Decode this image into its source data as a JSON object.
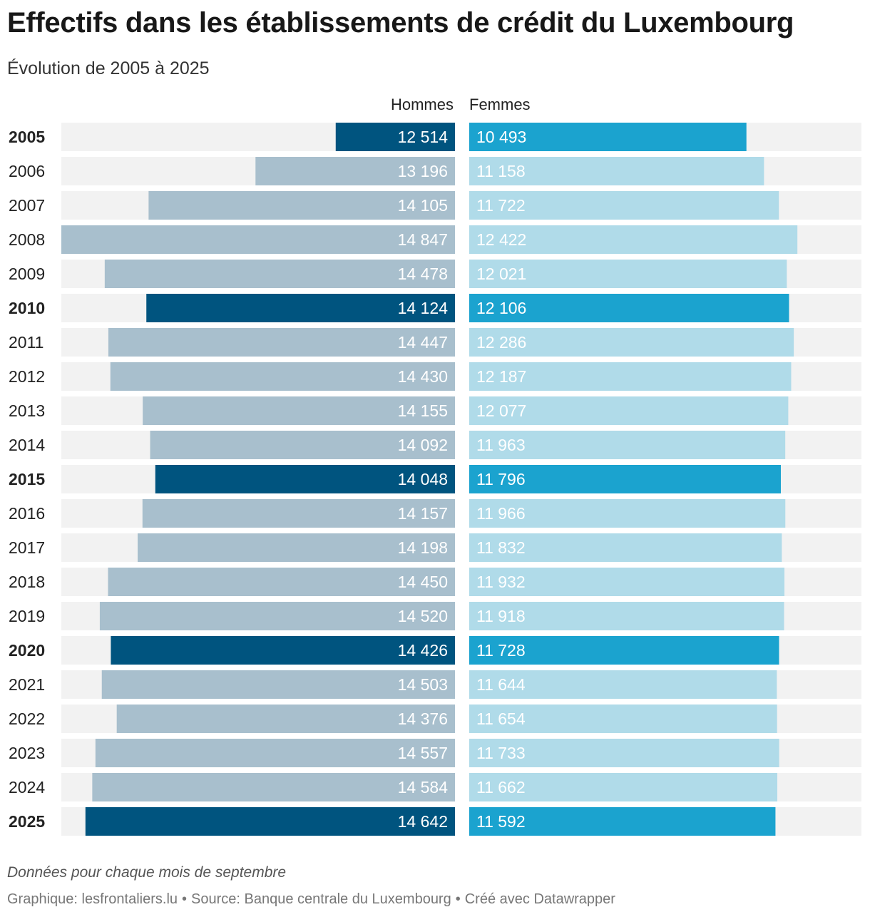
{
  "title": "Effectifs dans les établissements de crédit du Luxembourg",
  "subtitle": "Évolution de 2005 à 2025",
  "colors": {
    "men_highlight": "#00547f",
    "men": "#a8bfcd",
    "women_highlight": "#1ba3cf",
    "women": "#b0dbe9",
    "track": "#f2f2f2",
    "label_dark": "#ffffff",
    "label_light": "#ffffff"
  },
  "chart_data": {
    "type": "bar",
    "orientation": "horizontal-butterfly",
    "categories": [
      "2005",
      "2006",
      "2007",
      "2008",
      "2009",
      "2010",
      "2011",
      "2012",
      "2013",
      "2014",
      "2015",
      "2016",
      "2017",
      "2018",
      "2019",
      "2020",
      "2021",
      "2022",
      "2023",
      "2024",
      "2025"
    ],
    "highlighted": [
      "2005",
      "2010",
      "2015",
      "2020",
      "2025"
    ],
    "series": [
      {
        "name": "Hommes",
        "values": [
          12514,
          13196,
          14105,
          14847,
          14478,
          14124,
          14447,
          14430,
          14155,
          14092,
          14048,
          14157,
          14198,
          14450,
          14520,
          14426,
          14503,
          14376,
          14557,
          14584,
          14642
        ],
        "labels": [
          "12 514",
          "13 196",
          "14 105",
          "14 847",
          "14 478",
          "14 124",
          "14 447",
          "14 430",
          "14 155",
          "14 092",
          "14 048",
          "14 157",
          "14 198",
          "14 450",
          "14 520",
          "14 426",
          "14 503",
          "14 376",
          "14 557",
          "14 584",
          "14 642"
        ]
      },
      {
        "name": "Femmes",
        "values": [
          10493,
          11158,
          11722,
          12422,
          12021,
          12106,
          12286,
          12187,
          12077,
          11963,
          11796,
          11966,
          11832,
          11932,
          11918,
          11728,
          11644,
          11654,
          11733,
          11662,
          11592
        ],
        "labels": [
          "10 493",
          "11 158",
          "11 722",
          "12 422",
          "12 021",
          "12 106",
          "12 286",
          "12 187",
          "12 077",
          "11 963",
          "11 796",
          "11 966",
          "11 832",
          "11 932",
          "11 918",
          "11 728",
          "11 644",
          "11 654",
          "11 733",
          "11 662",
          "11 592"
        ]
      }
    ],
    "men_axis_min": 11500,
    "men_axis_max": 14847,
    "women_axis_min": 0,
    "women_axis_max": 14847
  },
  "note": "Données pour chaque mois de septembre",
  "footer": {
    "graphic": "Graphique: lesfrontaliers.lu",
    "source": "Source: Banque centrale du Luxembourg",
    "created": "Créé avec Datawrapper"
  }
}
